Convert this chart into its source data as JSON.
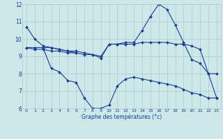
{
  "bg_color": "#cce8e8",
  "line_color": "#1a3a9c",
  "grid_color": "#aacccc",
  "xlabel": "Graphe des températures (°c)",
  "ylim": [
    6,
    12
  ],
  "xlim": [
    -0.5,
    23.5
  ],
  "yticks": [
    6,
    7,
    8,
    9,
    10,
    11,
    12
  ],
  "xticks": [
    0,
    1,
    2,
    3,
    4,
    5,
    6,
    7,
    8,
    9,
    10,
    11,
    12,
    13,
    14,
    15,
    16,
    17,
    18,
    19,
    20,
    21,
    22,
    23
  ],
  "s1_x": [
    0,
    1,
    2,
    3,
    4,
    5,
    6
  ],
  "s1_y": [
    10.7,
    10.0,
    9.6,
    9.5,
    9.4,
    9.3,
    9.2
  ],
  "s2_x": [
    2,
    3,
    4,
    5,
    6,
    7,
    8,
    9,
    10,
    11,
    12,
    13,
    14,
    15,
    16,
    17,
    18,
    19,
    20,
    21,
    22,
    23
  ],
  "s2_y": [
    9.5,
    8.3,
    8.1,
    7.6,
    7.5,
    6.6,
    6.0,
    6.0,
    6.2,
    7.3,
    7.7,
    7.8,
    7.7,
    7.6,
    7.5,
    7.4,
    7.3,
    7.1,
    6.9,
    6.8,
    6.6,
    6.6
  ],
  "s3_x": [
    0,
    1,
    2,
    3,
    4,
    5,
    6,
    7,
    8,
    9,
    10,
    11,
    12,
    13,
    14,
    15,
    16,
    17,
    18,
    19,
    20,
    21,
    22,
    23
  ],
  "s3_y": [
    9.5,
    9.5,
    9.5,
    9.5,
    9.4,
    9.3,
    9.3,
    9.2,
    9.1,
    8.9,
    9.7,
    9.7,
    9.8,
    9.8,
    10.5,
    11.3,
    12.0,
    11.7,
    10.8,
    9.8,
    8.8,
    8.6,
    8.0,
    8.0
  ],
  "s4_x": [
    0,
    1,
    2,
    3,
    4,
    5,
    6,
    7,
    8,
    9,
    10,
    11,
    12,
    13,
    14,
    15,
    16,
    17,
    18,
    19,
    20,
    21,
    22,
    23
  ],
  "s4_y": [
    9.5,
    9.4,
    9.4,
    9.3,
    9.3,
    9.2,
    9.2,
    9.1,
    9.1,
    9.0,
    9.7,
    9.7,
    9.7,
    9.7,
    9.8,
    9.8,
    9.8,
    9.8,
    9.7,
    9.7,
    9.6,
    9.4,
    8.0,
    6.6
  ]
}
